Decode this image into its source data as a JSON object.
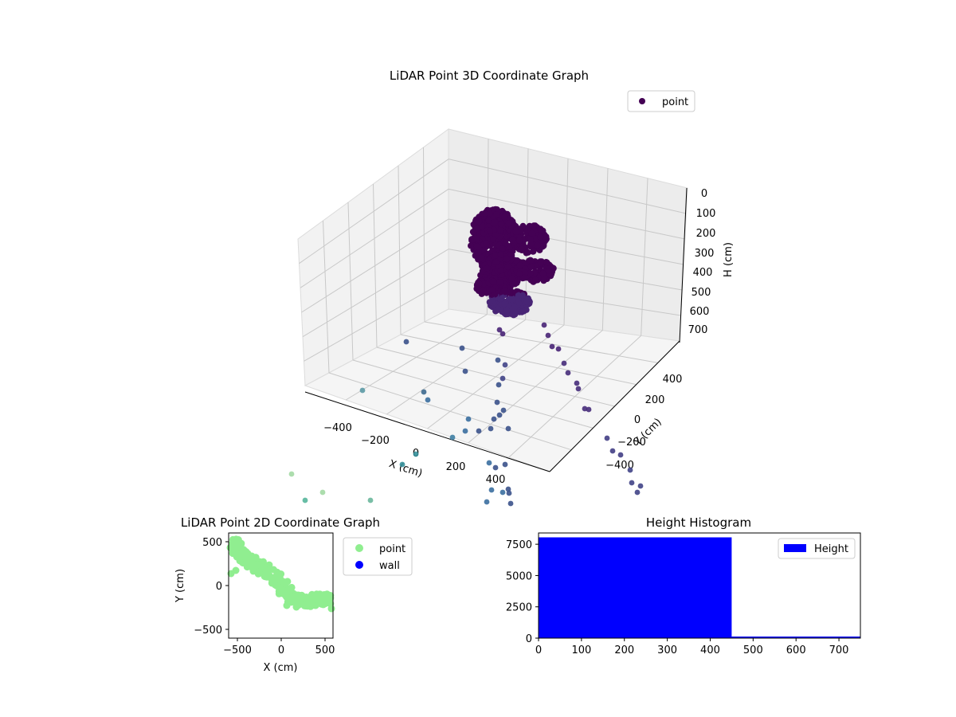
{
  "chart_data": [
    {
      "type": "scatter",
      "projection": "3d",
      "title": "LiDAR Point 3D Coordinate Graph",
      "xlabel": "X (cm)",
      "ylabel": "Y (cm)",
      "zlabel": "H (cm)",
      "xticks": [
        "−400",
        "−200",
        "0",
        "200",
        "400"
      ],
      "yticks": [
        "−400",
        "−200",
        "0",
        "200",
        "400"
      ],
      "zticks": [
        "0",
        "100",
        "200",
        "300",
        "400",
        "500",
        "600",
        "700"
      ],
      "zaxis_inverted": true,
      "legend": {
        "entries": [
          "point"
        ],
        "placement": "top-right"
      },
      "colormap": "viridis",
      "grid": true,
      "series": [
        {
          "name": "point",
          "cluster_note_points": [],
          "sparse_points": [
            {
              "x": -80,
              "y": 120,
              "h": 120
            },
            {
              "x": -40,
              "y": 80,
              "h": 150
            },
            {
              "x": 20,
              "y": 40,
              "h": 180
            },
            {
              "x": 60,
              "y": 20,
              "h": 200
            }
          ]
        }
      ]
    },
    {
      "type": "scatter",
      "title": "LiDAR Point 2D Coordinate Graph",
      "xlabel": "X (cm)",
      "ylabel": "Y (cm)",
      "xticks": [
        "−500",
        "0",
        "500"
      ],
      "yticks": [
        "500",
        "0",
        "−500"
      ],
      "xlim": [
        -580,
        580
      ],
      "ylim": [
        -600,
        600
      ],
      "legend": {
        "entries": [
          "point",
          "wall"
        ],
        "placement": "outside-right"
      },
      "series": [
        {
          "name": "point",
          "color": "#90ee90"
        },
        {
          "name": "wall",
          "color": "#0000ff"
        }
      ]
    },
    {
      "type": "bar",
      "title": "Height Histogram",
      "xticks": [
        "0",
        "100",
        "200",
        "300",
        "400",
        "500",
        "600",
        "700"
      ],
      "yticks": [
        "0",
        "2500",
        "5000",
        "7500"
      ],
      "xlim": [
        0,
        750
      ],
      "ylim": [
        0,
        8400
      ],
      "legend": {
        "entries": [
          "Height"
        ],
        "placement": "top-right"
      },
      "series": [
        {
          "name": "Height",
          "color": "#0000ff",
          "bins": [
            {
              "from": 0,
              "to": 450,
              "count": 8050
            },
            {
              "from": 450,
              "to": 750,
              "count": 40
            }
          ]
        }
      ]
    }
  ]
}
